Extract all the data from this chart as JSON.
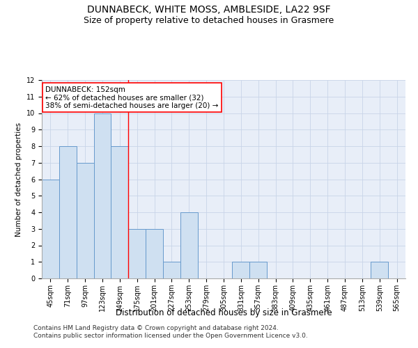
{
  "title": "DUNNABECK, WHITE MOSS, AMBLESIDE, LA22 9SF",
  "subtitle": "Size of property relative to detached houses in Grasmere",
  "xlabel": "Distribution of detached houses by size in Grasmere",
  "ylabel": "Number of detached properties",
  "categories": [
    "45sqm",
    "71sqm",
    "97sqm",
    "123sqm",
    "149sqm",
    "175sqm",
    "201sqm",
    "227sqm",
    "253sqm",
    "279sqm",
    "305sqm",
    "331sqm",
    "357sqm",
    "383sqm",
    "409sqm",
    "435sqm",
    "461sqm",
    "487sqm",
    "513sqm",
    "539sqm",
    "565sqm"
  ],
  "values": [
    6,
    8,
    7,
    10,
    8,
    3,
    3,
    1,
    4,
    0,
    0,
    1,
    1,
    0,
    0,
    0,
    0,
    0,
    0,
    1,
    0
  ],
  "bar_color": "#cfe0f1",
  "bar_edge_color": "#6699cc",
  "bar_linewidth": 0.7,
  "red_line_x": 4.5,
  "annotation_text": "DUNNABECK: 152sqm\n← 62% of detached houses are smaller (32)\n38% of semi-detached houses are larger (20) →",
  "annotation_box_color": "white",
  "annotation_box_edge": "red",
  "ylim": [
    0,
    12
  ],
  "yticks": [
    0,
    1,
    2,
    3,
    4,
    5,
    6,
    7,
    8,
    9,
    10,
    11,
    12
  ],
  "grid_color": "#c8d4e8",
  "background_color": "#e8eef8",
  "footer_line1": "Contains HM Land Registry data © Crown copyright and database right 2024.",
  "footer_line2": "Contains public sector information licensed under the Open Government Licence v3.0.",
  "title_fontsize": 10,
  "subtitle_fontsize": 9,
  "xlabel_fontsize": 8.5,
  "ylabel_fontsize": 7.5,
  "tick_fontsize": 7,
  "annotation_fontsize": 7.5,
  "footer_fontsize": 6.5
}
